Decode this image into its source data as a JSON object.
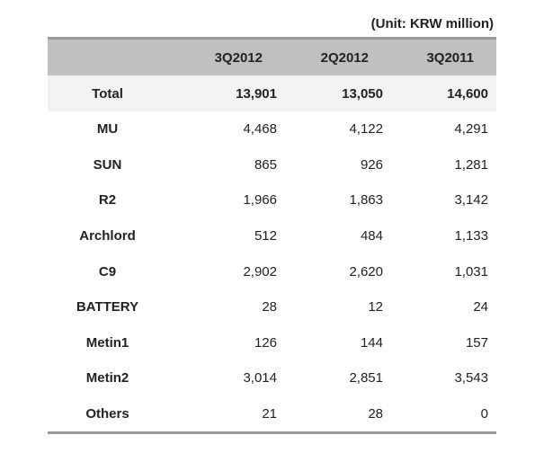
{
  "unit_label": "(Unit: KRW million)",
  "columns": [
    "",
    "3Q2012",
    "2Q2012",
    "3Q2011"
  ],
  "rows": [
    {
      "name": "Total",
      "values": [
        "13,901",
        "13,050",
        "14,600"
      ]
    },
    {
      "name": "MU",
      "values": [
        "4,468",
        "4,122",
        "4,291"
      ]
    },
    {
      "name": "SUN",
      "values": [
        "865",
        "926",
        "1,281"
      ]
    },
    {
      "name": "R2",
      "values": [
        "1,966",
        "1,863",
        "3,142"
      ]
    },
    {
      "name": "Archlord",
      "values": [
        "512",
        "484",
        "1,133"
      ]
    },
    {
      "name": "C9",
      "values": [
        "2,902",
        "2,620",
        "1,031"
      ]
    },
    {
      "name": "BATTERY",
      "values": [
        "28",
        "12",
        "24"
      ]
    },
    {
      "name": "Metin1",
      "values": [
        "126",
        "144",
        "157"
      ]
    },
    {
      "name": "Metin2",
      "values": [
        "3,014",
        "2,851",
        "3,543"
      ]
    },
    {
      "name": "Others",
      "values": [
        "21",
        "28",
        "0"
      ]
    }
  ]
}
